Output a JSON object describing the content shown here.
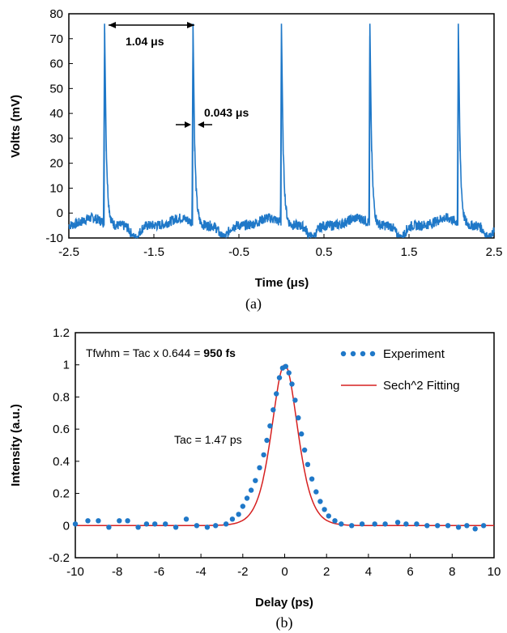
{
  "chart_data": [
    {
      "type": "line",
      "panel_label": "(a)",
      "xlabel": "Time (μs)",
      "ylabel": "Voltts (mV)",
      "xlim": [
        -2.5,
        2.5
      ],
      "ylim": [
        -10,
        80
      ],
      "xticks": [
        "-2.5",
        "-1.5",
        "-0.5",
        "0.5",
        "1.5",
        "2.5"
      ],
      "yticks": [
        "-10",
        "0",
        "10",
        "20",
        "30",
        "40",
        "50",
        "60",
        "70",
        "80"
      ],
      "grid": false,
      "color": "#1f78c8",
      "pulse_peaks_x": [
        -2.08,
        -1.04,
        0.0,
        1.04,
        2.08
      ],
      "pulse_peak_value": 76,
      "baseline_value": -5,
      "annotations": {
        "period": "1.04 μs",
        "width": "0.043 μs"
      }
    },
    {
      "type": "scatter",
      "panel_label": "(b)",
      "xlabel": "Delay (ps)",
      "ylabel": "Intensity (a.u.)",
      "xlim": [
        -10,
        10
      ],
      "ylim": [
        -0.2,
        1.2
      ],
      "xticks": [
        "-10",
        "-8",
        "-6",
        "-4",
        "-2",
        "0",
        "2",
        "4",
        "6",
        "8",
        "10"
      ],
      "yticks": [
        "-0.2",
        "0",
        "0.2",
        "0.4",
        "0.6",
        "0.8",
        "1",
        "1.2"
      ],
      "grid": false,
      "legend_position": "top-right",
      "annotations": {
        "formula_prefix": "Tfwhm = Tac x 0.644 = ",
        "formula_value": "950 fs",
        "tac": "Tac = 1.47 ps"
      },
      "series": [
        {
          "name": "Experiment",
          "kind": "markers",
          "color": "#1f78c8",
          "x": [
            -10.0,
            -9.4,
            -8.9,
            -8.4,
            -7.9,
            -7.5,
            -7.0,
            -6.6,
            -6.2,
            -5.7,
            -5.2,
            -4.7,
            -4.2,
            -3.7,
            -3.3,
            -2.8,
            -2.5,
            -2.2,
            -2.0,
            -1.8,
            -1.6,
            -1.4,
            -1.2,
            -1.0,
            -0.85,
            -0.7,
            -0.55,
            -0.4,
            -0.25,
            -0.1,
            0.05,
            0.2,
            0.35,
            0.5,
            0.65,
            0.8,
            0.95,
            1.1,
            1.3,
            1.5,
            1.7,
            1.9,
            2.1,
            2.4,
            2.7,
            3.2,
            3.7,
            4.3,
            4.8,
            5.4,
            5.8,
            6.3,
            6.8,
            7.3,
            7.8,
            8.3,
            8.7,
            9.1,
            9.5
          ],
          "y": [
            0.01,
            0.03,
            0.03,
            -0.01,
            0.03,
            0.03,
            -0.01,
            0.01,
            0.01,
            0.01,
            -0.01,
            0.04,
            0.0,
            -0.01,
            0.0,
            0.01,
            0.04,
            0.07,
            0.12,
            0.17,
            0.22,
            0.28,
            0.36,
            0.44,
            0.53,
            0.62,
            0.72,
            0.82,
            0.92,
            0.98,
            0.99,
            0.95,
            0.88,
            0.78,
            0.67,
            0.57,
            0.47,
            0.38,
            0.29,
            0.21,
            0.15,
            0.1,
            0.06,
            0.03,
            0.01,
            0.0,
            0.01,
            0.01,
            0.01,
            0.02,
            0.01,
            0.01,
            0.0,
            0.0,
            0.0,
            -0.01,
            0.0,
            -0.02,
            0.0
          ]
        },
        {
          "name": "Sech^2 Fitting",
          "kind": "line",
          "color": "#d62020",
          "function": "sech2",
          "fwhm_ps": 0.95,
          "peak": 1.0
        }
      ]
    }
  ]
}
